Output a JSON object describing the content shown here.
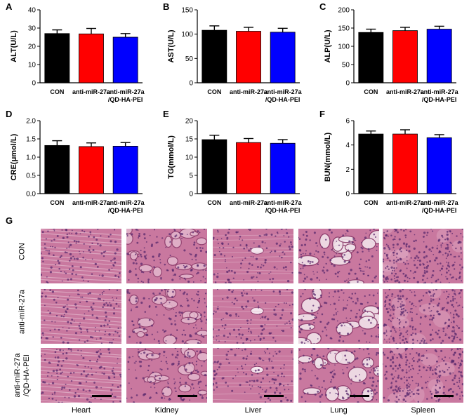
{
  "colors": {
    "con": "#000000",
    "anti": "#ff0000",
    "qd": "#0000ff",
    "tissue_base": "#c9789f",
    "tissue_light": "#e4b8cd",
    "tissue_dark": "#8a3a6a",
    "nuclei": "#5a2a6e"
  },
  "panel_labels": [
    "A",
    "B",
    "C",
    "D",
    "E",
    "F",
    "G"
  ],
  "chart_data": [
    {
      "type": "bar",
      "panel": "A",
      "categories": [
        "CON",
        "anti-miR-27a",
        "anti-miR-27a\n/QD-HA-PEI"
      ],
      "values": [
        27,
        26.8,
        25
      ],
      "errors": [
        2,
        3,
        2
      ],
      "ylabel": "ALT(U/L)",
      "ylim": [
        0,
        40
      ],
      "yticks": [
        0,
        10,
        20,
        30,
        40
      ],
      "xlabel": ""
    },
    {
      "type": "bar",
      "panel": "B",
      "categories": [
        "CON",
        "anti-miR-27a",
        "anti-miR-27a\n/QD-HA-PEI"
      ],
      "values": [
        108,
        106,
        104
      ],
      "errors": [
        9,
        8,
        8
      ],
      "ylabel": "AST(U/L)",
      "ylim": [
        0,
        150
      ],
      "yticks": [
        0,
        50,
        100,
        150
      ],
      "xlabel": ""
    },
    {
      "type": "bar",
      "panel": "C",
      "categories": [
        "CON",
        "anti-miR-27a",
        "anti-miR-27a\n/QD-HA-PEI"
      ],
      "values": [
        138,
        143,
        147
      ],
      "errors": [
        9,
        9,
        8
      ],
      "ylabel": "ALP(U/L)",
      "ylim": [
        0,
        200
      ],
      "yticks": [
        0,
        50,
        100,
        150,
        200
      ],
      "xlabel": ""
    },
    {
      "type": "bar",
      "panel": "D",
      "categories": [
        "CON",
        "anti-miR-27a",
        "anti-miR-27a\n/QD-HA-PEI"
      ],
      "values": [
        1.32,
        1.29,
        1.3
      ],
      "errors": [
        0.13,
        0.1,
        0.1
      ],
      "ylabel": "CRE(μmol/L)",
      "ylim": [
        0,
        2.0
      ],
      "yticks": [
        0,
        0.5,
        1.0,
        1.5,
        2.0
      ],
      "ytick_labels": [
        "0.0",
        "0.5",
        "1.0",
        "1.5",
        "2.0"
      ],
      "xlabel": ""
    },
    {
      "type": "bar",
      "panel": "E",
      "categories": [
        "CON",
        "anti-miR-27a",
        "anti-miR-27a\n/QD-HA-PEI"
      ],
      "values": [
        14.8,
        14,
        13.8
      ],
      "errors": [
        1.2,
        1.1,
        1
      ],
      "ylabel": "TG(mmol/L)",
      "ylim": [
        0,
        20
      ],
      "yticks": [
        0,
        5,
        10,
        15,
        20
      ],
      "xlabel": ""
    },
    {
      "type": "bar",
      "panel": "F",
      "categories": [
        "CON",
        "anti-miR-27a",
        "anti-miR-27a\n/QD-HA-PEI"
      ],
      "values": [
        4.9,
        4.9,
        4.6
      ],
      "errors": [
        0.25,
        0.35,
        0.25
      ],
      "ylabel": "BUN(mmol/L)",
      "ylim": [
        0,
        6
      ],
      "yticks": [
        0,
        2,
        4,
        6
      ],
      "xlabel": ""
    }
  ],
  "histology": {
    "rows": [
      "CON",
      "anti-miR-27a",
      "anti-miR-27a\n/QD-HA-PEI"
    ],
    "columns": [
      "Heart",
      "Kidney",
      "Liver",
      "Lung",
      "Spleen"
    ],
    "tissue_patterns": [
      "striated",
      "tubular",
      "lobular",
      "alveolar",
      "dense"
    ]
  }
}
